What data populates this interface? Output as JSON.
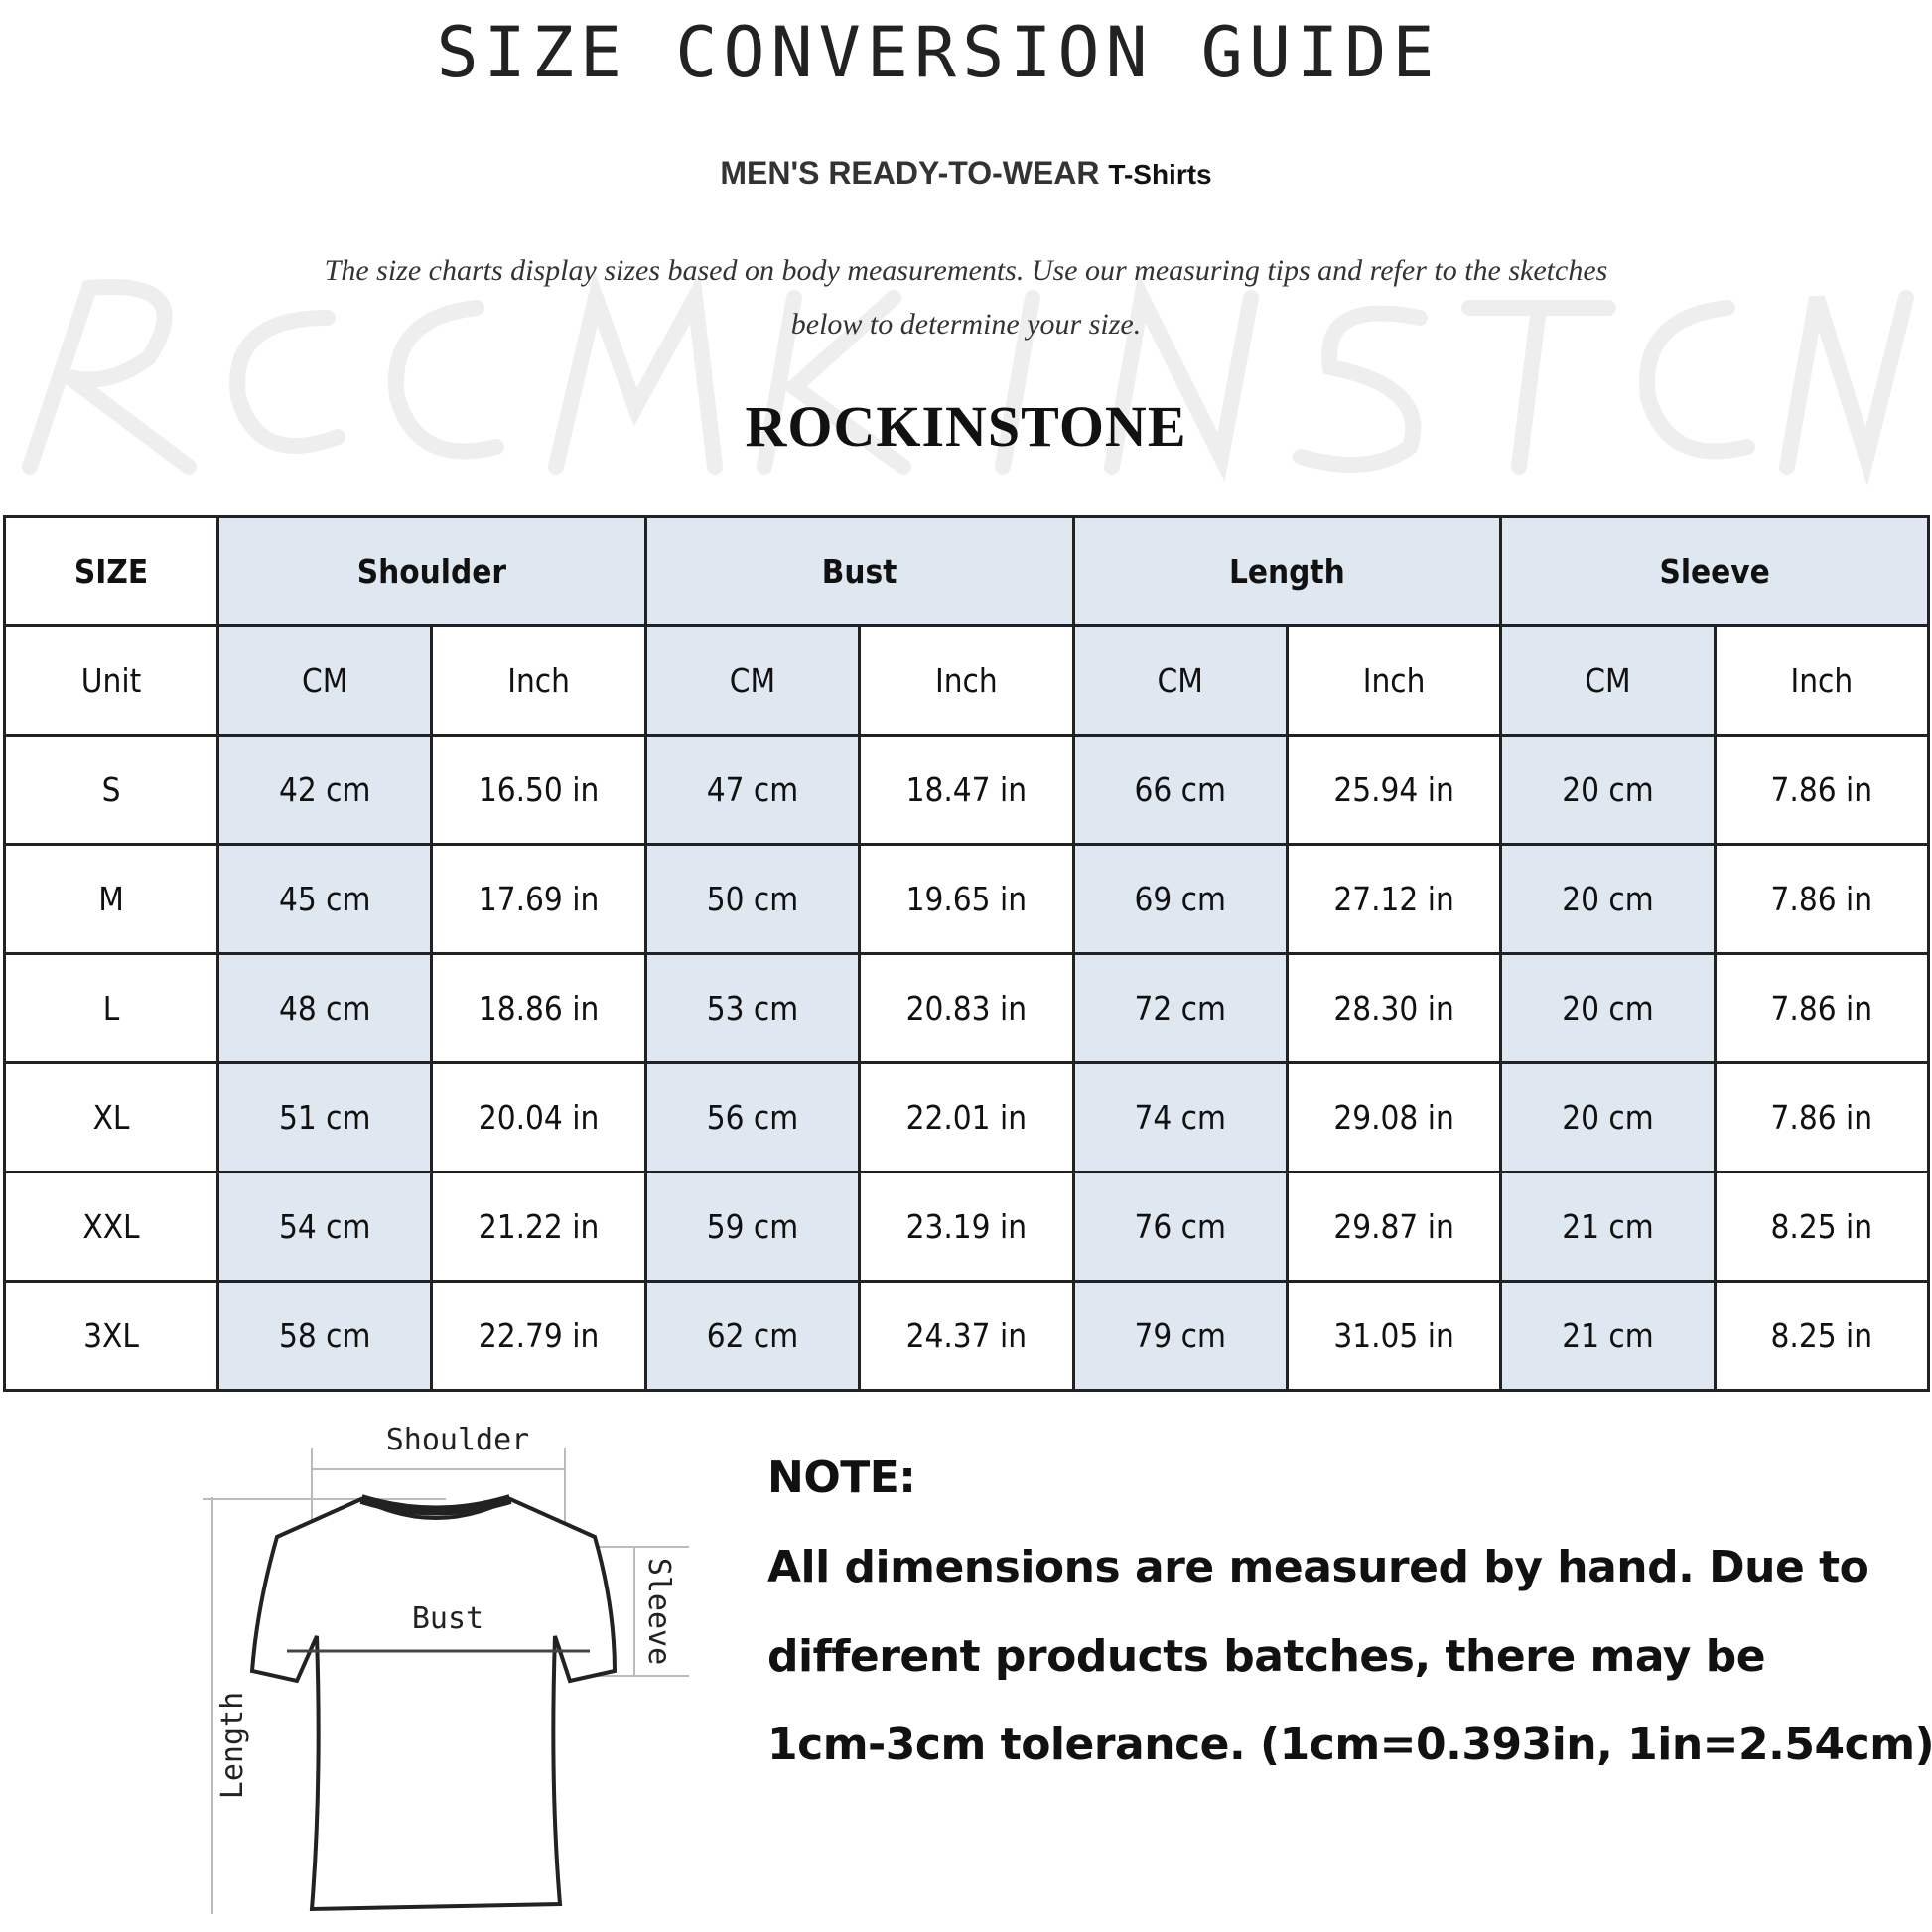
{
  "header": {
    "title": "SIZE CONVERSION GUIDE",
    "subtitle_main": "MEN'S READY-TO-WEAR",
    "subtitle_product": "T-Shirts",
    "description_line1": "The size charts display sizes based on body measurements. Use our measuring tips and refer to the sketches",
    "description_line2": "below to determine your size.",
    "brand": "ROCKINSTONE",
    "watermark": "ROCKINSTONE"
  },
  "table": {
    "headers": [
      "SIZE",
      "Shoulder",
      "Bust",
      "Length",
      "Sleeve"
    ],
    "unit_row": [
      "Unit",
      "CM",
      "Inch",
      "CM",
      "Inch",
      "CM",
      "Inch",
      "CM",
      "Inch"
    ],
    "rows": [
      [
        "S",
        "42 cm",
        "16.50 in",
        "47 cm",
        "18.47  in",
        "66 cm",
        "25.94  in",
        "20 cm",
        "7.86  in"
      ],
      [
        "M",
        "45 cm",
        "17.69  in",
        "50 cm",
        "19.65  in",
        "69 cm",
        "27.12  in",
        "20 cm",
        "7.86  in"
      ],
      [
        "L",
        "48 cm",
        "18.86  in",
        "53 cm",
        "20.83  in",
        "72 cm",
        "28.30  in",
        "20 cm",
        "7.86  in"
      ],
      [
        "XL",
        "51 cm",
        "20.04  in",
        "56 cm",
        "22.01  in",
        "74 cm",
        "29.08  in",
        "20 cm",
        "7.86  in"
      ],
      [
        "XXL",
        "54 cm",
        "21.22  in",
        "59 cm",
        "23.19  in",
        "76 cm",
        "29.87  in",
        "21 cm",
        "8.25  in"
      ],
      [
        "3XL",
        "58 cm",
        "22.79  in",
        "62 cm",
        "24.37  in",
        "79 cm",
        "31.05  in",
        "21 cm",
        "8.25  in"
      ]
    ]
  },
  "diagram": {
    "shoulder": "Shoulder",
    "bust": "Bust",
    "length": "Length",
    "sleeve": "Sleeve"
  },
  "note": {
    "heading": "NOTE:",
    "line1": "All dimensions are measured by hand. Due to",
    "line2": "different products batches, there may be",
    "line3": "1cm-3cm tolerance. (1cm=0.393in, 1in=2.54cm)"
  },
  "colors": {
    "header_fill": "#dfe7f0",
    "border": "#222222"
  }
}
